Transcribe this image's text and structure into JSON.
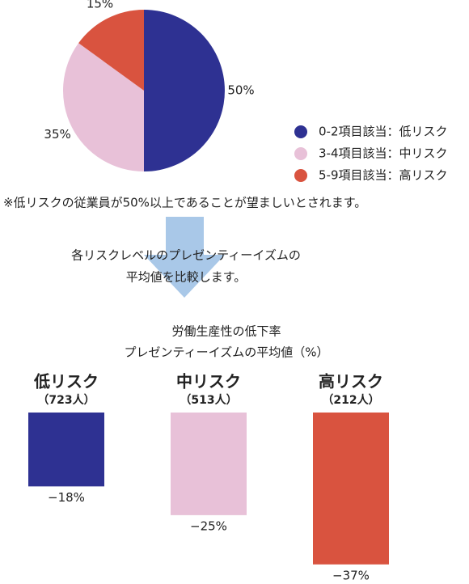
{
  "chart_data": [
    {
      "type": "pie",
      "categories": [
        "0-2項目該当：低リスク",
        "3-4項目該当：中リスク",
        "5-9項目該当：高リスク"
      ],
      "values": [
        50,
        35,
        15
      ],
      "value_labels": [
        "50%",
        "35%",
        "15%"
      ],
      "colors": [
        "#2e3192",
        "#e8c1d8",
        "#d9533f"
      ],
      "note": "※低リスクの従業員が50%以上であることが望ましいとされます。"
    },
    {
      "type": "bar",
      "intro": [
        "各リスクレベルのプレゼンティーイズムの",
        "平均値を比較します。"
      ],
      "title": [
        "労働生産性の低下率",
        "プレゼンティーイズムの平均値（%）"
      ],
      "categories": [
        "低リスク",
        "中リスク",
        "高リスク"
      ],
      "category_notes": [
        "（723人）",
        "（513人）",
        "（212人）"
      ],
      "values": [
        -18,
        -25,
        -37
      ],
      "value_labels": [
        "−18%",
        "−25%",
        "−37%"
      ],
      "colors": [
        "#2e3192",
        "#e8c1d8",
        "#d9533f"
      ],
      "ylim": [
        -40,
        0
      ]
    }
  ]
}
